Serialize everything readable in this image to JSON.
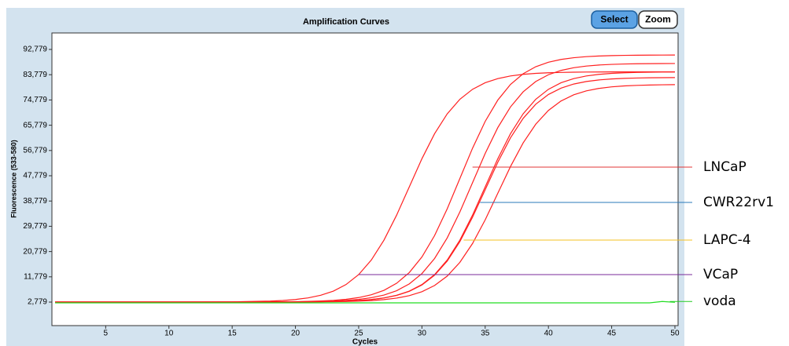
{
  "chart_data": {
    "type": "line",
    "title": "Amplification Curves",
    "x_label": "Cycles",
    "y_label": "Fluorescence (533-580)",
    "x": [
      1,
      5,
      10,
      15,
      18,
      19,
      20,
      21,
      22,
      23,
      24,
      25,
      26,
      27,
      28,
      29,
      30,
      31,
      32,
      33,
      34,
      35,
      36,
      37,
      38,
      39,
      40,
      41,
      42,
      43,
      44,
      45,
      46,
      47,
      48,
      49,
      50
    ],
    "series": [
      {
        "color": "#ff2020",
        "values": [
          2800,
          2800,
          2800,
          2874,
          3136,
          3349,
          3702,
          4276,
          5203,
          6687,
          9024,
          12574,
          17757,
          24850,
          33755,
          43800,
          53845,
          62750,
          69843,
          75026,
          78576,
          80913,
          82397,
          83324,
          83898,
          84251,
          84464,
          84595,
          84677,
          84726,
          84755,
          84772,
          84784,
          84792,
          84795,
          84797,
          84798
        ]
      },
      {
        "color": "#ff2020",
        "values": [
          2800,
          2800,
          2800,
          2809,
          2848,
          2879,
          2932,
          3020,
          3161,
          3390,
          3768,
          4384,
          5378,
          6971,
          9479,
          13290,
          18851,
          26463,
          36020,
          46800,
          57580,
          67137,
          74749,
          80310,
          84121,
          86629,
          88222,
          89216,
          89832,
          90210,
          90439,
          90580,
          90668,
          90721,
          90752,
          90770,
          90782
        ]
      },
      {
        "color": "#ff2020",
        "values": [
          2800,
          2800,
          2800,
          2804,
          2829,
          2847,
          2877,
          2928,
          3013,
          3149,
          3370,
          3735,
          4330,
          5291,
          6829,
          9252,
          12932,
          18304,
          25657,
          34888,
          45300,
          55713,
          64944,
          72296,
          77668,
          81349,
          83771,
          85310,
          86270,
          86865,
          87231,
          87452,
          87588,
          87673,
          87724,
          87753,
          87771
        ]
      },
      {
        "color": "#ff2020",
        "values": [
          2800,
          2800,
          2800,
          2804,
          2816,
          2828,
          2845,
          2874,
          2923,
          3005,
          3136,
          3349,
          3702,
          4276,
          5203,
          6687,
          9024,
          12574,
          17757,
          24850,
          33755,
          43800,
          53845,
          62750,
          69843,
          75026,
          78576,
          80913,
          82397,
          83324,
          83898,
          84251,
          84464,
          84595,
          84677,
          84726,
          84755
        ]
      },
      {
        "color": "#ff2020",
        "values": [
          2800,
          2800,
          2800,
          2804,
          2816,
          2827,
          2844,
          2872,
          2920,
          3000,
          3128,
          3336,
          3680,
          4240,
          5144,
          6592,
          8872,
          12336,
          17392,
          24312,
          33000,
          42800,
          52600,
          61288,
          68208,
          73264,
          76728,
          79008,
          80456,
          81360,
          81920,
          82264,
          82472,
          82600,
          82680,
          82728,
          82756
        ]
      },
      {
        "color": "#ff2020",
        "values": [
          2800,
          2800,
          2800,
          2802,
          2808,
          2816,
          2826,
          2843,
          2870,
          2916,
          2994,
          3118,
          3319,
          3653,
          4195,
          5071,
          6474,
          8682,
          12038,
          16936,
          23640,
          32056,
          41550,
          51044,
          59460,
          66164,
          71062,
          74418,
          76627,
          78029,
          78905,
          79448,
          79781,
          79982,
          80106,
          80184,
          80230
        ]
      },
      {
        "color": "#22dd22",
        "values": [
          2500,
          2500,
          2500,
          2500,
          2500,
          2500,
          2500,
          2500,
          2500,
          2500,
          2500,
          2500,
          2500,
          2500,
          2500,
          2500,
          2500,
          2500,
          2500,
          2500,
          2500,
          2500,
          2500,
          2500,
          2500,
          2500,
          2500,
          2500,
          2500,
          2500,
          2500,
          2500,
          2500,
          2500,
          2500,
          3000,
          2700
        ]
      }
    ],
    "xlim": [
      0.75,
      50.25
    ],
    "xticks": [
      5,
      10,
      15,
      20,
      25,
      30,
      35,
      40,
      45,
      50
    ],
    "ylim": [
      -5600,
      98650
    ],
    "yticks": [
      {
        "value": 2779,
        "label": "2,779"
      },
      {
        "value": 11779,
        "label": "11,779"
      },
      {
        "value": 20779,
        "label": "20,779"
      },
      {
        "value": 29779,
        "label": "29,779"
      },
      {
        "value": 38779,
        "label": "38,779"
      },
      {
        "value": 47779,
        "label": "47,779"
      },
      {
        "value": 56779,
        "label": "56,779"
      },
      {
        "value": 65779,
        "label": "65,779"
      },
      {
        "value": 74779,
        "label": "74,779"
      },
      {
        "value": 83779,
        "label": "83,779"
      },
      {
        "value": 92779,
        "label": "92,779"
      }
    ],
    "annotations": [
      {
        "text": "LNCaP",
        "color": "#e03535",
        "x": 34,
        "y": 50850
      },
      {
        "text": "CWR22rv1",
        "color": "#2a78b8",
        "x": 34.6,
        "y": 38270
      },
      {
        "text": "LAPC-4",
        "color": "#f5c020",
        "x": 33.3,
        "y": 24860
      },
      {
        "text": "VCaP",
        "color": "#7a2a9a",
        "x": 25,
        "y": 12560
      },
      {
        "text": "voda",
        "color": "#22cc22",
        "x": 49.6,
        "y": 3000
      }
    ]
  },
  "controls": [
    "Select",
    "Zoom"
  ]
}
